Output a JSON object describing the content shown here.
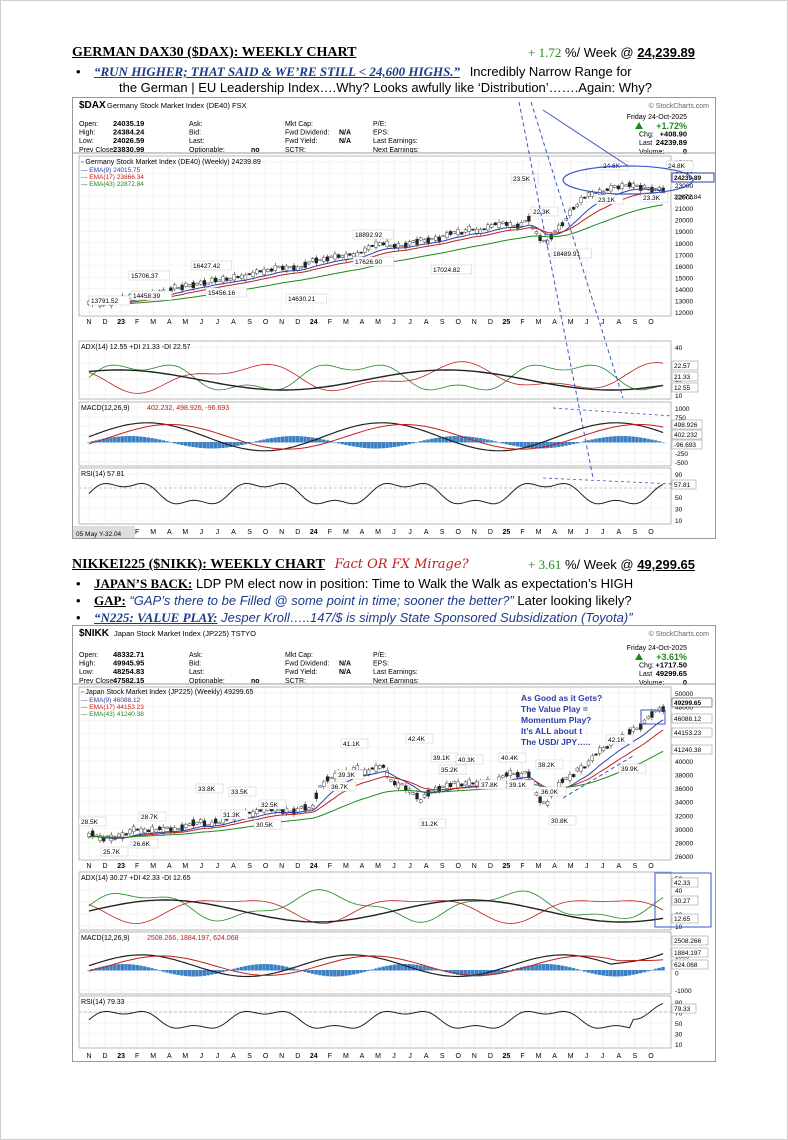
{
  "dax": {
    "title": "GERMAN DAX30 ($DAX): WEEKLY CHART",
    "change": "+ 1.72",
    "change_suffix": "%/ Week @",
    "level": "24,239.89",
    "bullet_quote": "“RUN HIGHER; THAT SAID & WE’RE STILL < 24,600 HIGHS.”",
    "bullet_text1": "Incredibly Narrow Range for",
    "bullet_text2": "the German | EU Leadership Index….Why? Looks awfully like ‘Distribution’…….Again: Why?",
    "chart": {
      "symbol": "$DAX",
      "name": "Germany Stock Market Index (DE40)",
      "exchange": "FSX",
      "watermark": "© StockCharts.com",
      "open_l": "Open:",
      "open": "24035.19",
      "high_l": "High:",
      "high": "24384.24",
      "low_l": "Low:",
      "low": "24026.59",
      "prev_l": "Prev Close:",
      "prev": "23830.99",
      "ask": "Ask:",
      "bid": "Bid:",
      "last": "Last:",
      "optionable": "Optionable:",
      "opt_val": "no",
      "mktcap": "Mkt Cap:",
      "fwddiv": "Fwd Dividend:",
      "fwddiv_v": "N/A",
      "fwdyield": "Fwd Yield:",
      "fwdyield_v": "N/A",
      "sctr": "SCTR:",
      "pe": "P/E:",
      "eps": "EPS:",
      "lastearn": "Last Earnings:",
      "nextearn": "Next Earnings:",
      "date": "Friday  24-Oct-2025",
      "pct": "+1.72%",
      "chg_l": "Chg:",
      "chg": "+408.90",
      "last_l": "Last",
      "last_v": "24239.89",
      "vol_l": "Volume:",
      "vol": "0",
      "legend_main": "Germany Stock Market Index (DE40) (Weekly) 24239.89",
      "ema9": "EMA(9) 24015.75",
      "ema17": "EMA(17) 23866.34",
      "ema43": "EMA(43) 22872.84",
      "price_ticks": [
        "25000",
        "24000",
        "23000",
        "22000",
        "21000",
        "20000",
        "19000",
        "18000",
        "17000",
        "16000",
        "15000",
        "14000",
        "13000",
        "12000"
      ],
      "right_tag_price": "24239.89",
      "right_tag_ema": "22872.84",
      "annotations": [
        "13791.52",
        "14458.39",
        "15706.37",
        "15456.16",
        "16427.42",
        "14630.21",
        "18892.92",
        "17626.90",
        "17024.82",
        "23.5K",
        "22.3K",
        "18489.91",
        "24.6K",
        "24.8K",
        "23.1K",
        "23.3K"
      ],
      "months": [
        "N",
        "D",
        "23",
        "F",
        "M",
        "A",
        "M",
        "J",
        "J",
        "A",
        "S",
        "O",
        "N",
        "D",
        "24",
        "F",
        "M",
        "A",
        "M",
        "J",
        "J",
        "A",
        "S",
        "O",
        "N",
        "D",
        "25",
        "F",
        "M",
        "A",
        "M",
        "J",
        "J",
        "A",
        "S",
        "O"
      ],
      "adx_legend": "ADX(14) 12.55 +DI 21.33 -DI 22.57",
      "adx_ticks": [
        "40",
        "30",
        "20",
        "10"
      ],
      "adx_tags": [
        "22.57",
        "21.33",
        "12.55"
      ],
      "macd_legend": "MACD(12,26,9) 402.232, 498.926, -96.693",
      "macd_ticks": [
        "1000",
        "750",
        "500",
        "250",
        "0",
        "-250",
        "-500"
      ],
      "macd_tags": [
        "498.926",
        "402.232",
        "-96.693"
      ],
      "rsi_legend": "RSI(14) 57.81",
      "rsi_ticks": [
        "90",
        "70",
        "50",
        "30",
        "10"
      ],
      "rsi_tag": "57.81",
      "footer_date": "05 May Y-32.04"
    }
  },
  "nikkei": {
    "title": "NIKKEI225 ($NIKK): WEEKLY CHART",
    "tag": "Fact OR FX Mirage?",
    "change": "+ 3.61",
    "change_suffix": "%/ Week @",
    "level": "49,299.65",
    "b1_lead": "JAPAN’S BACK:",
    "b1_text": "LDP PM elect now in position: Time to Walk the Walk as expectation’s HIGH",
    "b2_lead": "GAP:",
    "b2_text": "“GAP’s there to be Filled @ some point in time; sooner the better?”",
    "b2_tail": "Later looking likely?",
    "b3_lead": "“N225: VALUE PLAY:",
    "b3_text": "Jesper Kroll…..147/$ is simply State Sponsored Subsidization (Toyota)”",
    "chart": {
      "symbol": "$NIKK",
      "name": "Japan Stock Market Index (JP225)",
      "exchange": "TSTYO",
      "watermark": "© StockCharts.com",
      "open_l": "Open:",
      "open": "48332.71",
      "high_l": "High:",
      "high": "49945.95",
      "low_l": "Low:",
      "low": "48254.83",
      "prev_l": "Prev Close:",
      "prev": "47582.15",
      "ask": "Ask:",
      "bid": "Bid:",
      "last": "Last:",
      "optionable": "Optionable:",
      "opt_val": "no",
      "mktcap": "Mkt Cap:",
      "fwddiv": "Fwd Dividend:",
      "fwddiv_v": "N/A",
      "fwdyield": "Fwd Yield:",
      "fwdyield_v": "N/A",
      "sctr": "SCTR:",
      "pe": "P/E:",
      "eps": "EPS:",
      "lastearn": "Last Earnings:",
      "nextearn": "Next Earnings:",
      "date": "Friday  24-Oct-2025",
      "pct": "+3.61%",
      "chg_l": "Chg:",
      "chg": "+1717.50",
      "last_l": "Last",
      "last_v": "49299.65",
      "vol_l": "Volume:",
      "vol": "0",
      "legend_main": "Japan Stock Market Index (JP225) (Weekly) 49299.65",
      "ema9": "EMA(9) 46088.12",
      "ema17": "EMA(17) 44153.23",
      "ema43": "EMA(43) 41240.38",
      "price_ticks": [
        "50000",
        "48000",
        "46000",
        "44000",
        "42000",
        "40000",
        "38000",
        "36000",
        "34000",
        "32000",
        "30000",
        "28000",
        "26000"
      ],
      "right_tags": [
        "49299.65",
        "46088.12",
        "44153.23",
        "41240.38"
      ],
      "callout": [
        "As Good as it Gets?",
        "The Value Play =",
        "Momentum Play?",
        "It’s ALL about t",
        "The USD/ JPY….."
      ],
      "annotations": [
        "28.5K",
        "25.7K",
        "26.6K",
        "28.7K",
        "33.8K",
        "33.5K",
        "31.3K",
        "32.5K",
        "30.5K",
        "41.1K",
        "39.3K",
        "36.7K",
        "42.4K",
        "39.1K",
        "35.2K",
        "40.3K",
        "37.8K",
        "40.4K",
        "39.1K",
        "31.2K",
        "38.2K",
        "36.0K",
        "30.8K",
        "42.1K",
        "39.9K"
      ],
      "months": [
        "N",
        "D",
        "23",
        "F",
        "M",
        "A",
        "M",
        "J",
        "J",
        "A",
        "S",
        "O",
        "N",
        "D",
        "24",
        "F",
        "M",
        "A",
        "M",
        "J",
        "J",
        "A",
        "S",
        "O",
        "N",
        "D",
        "25",
        "F",
        "M",
        "A",
        "M",
        "J",
        "J",
        "A",
        "S",
        "O"
      ],
      "adx_legend": "ADX(14) 30.27 +DI 42.33 -DI 12.65",
      "adx_ticks": [
        "50",
        "40",
        "30",
        "20",
        "10"
      ],
      "adx_tags": [
        "42.33",
        "30.27",
        "12.65"
      ],
      "macd_legend": "MACD(12,26,9) 2508.266, 1884.197, 624.068",
      "macd_ticks": [
        "2000",
        "1000",
        "0",
        "-1000"
      ],
      "macd_tags": [
        "2508.266",
        "1884.197",
        "624.068"
      ],
      "rsi_legend": "RSI(14) 79.33",
      "rsi_ticks": [
        "90",
        "70",
        "50",
        "30",
        "10"
      ],
      "rsi_tag": "79.33"
    }
  }
}
